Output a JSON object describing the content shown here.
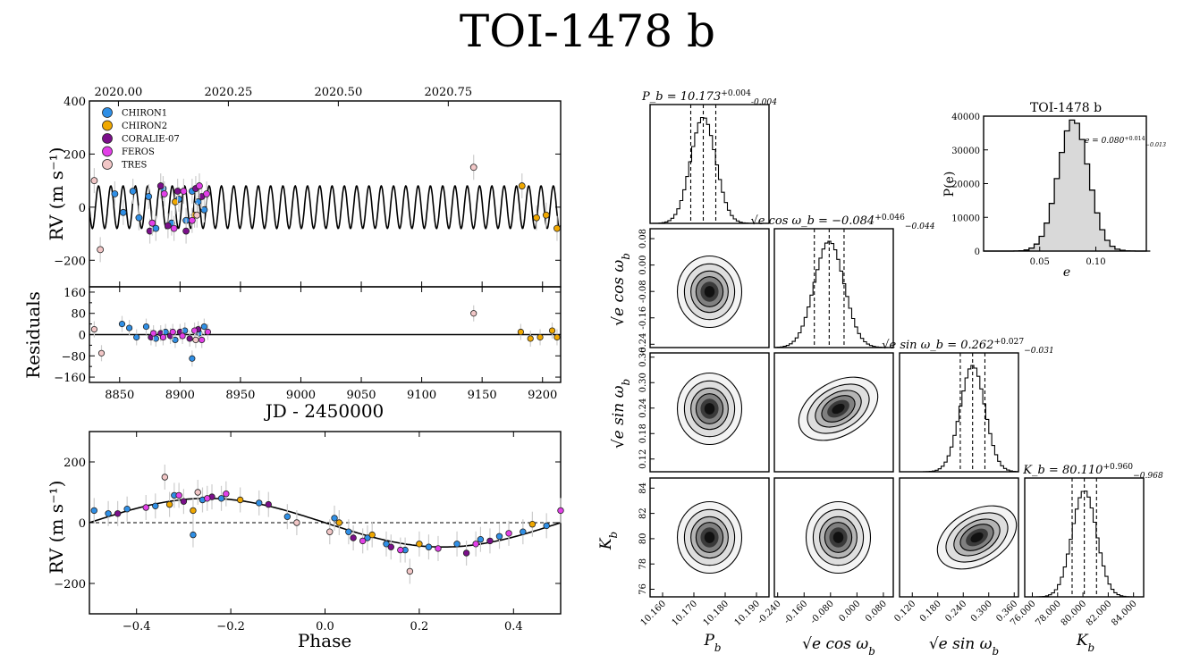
{
  "page": {
    "title": "TOI-1478 b"
  },
  "colors": {
    "CHIRON1": "#2f8fe6",
    "CHIRON2": "#f0a800",
    "CORALIE-07": "#7b0f8a",
    "FEROS": "#e33fe8",
    "TRES": "#f2c7c7"
  },
  "chart_data": [
    {
      "id": "rv_time",
      "type": "scatter",
      "xlabel": "",
      "ylabel": "RV (m s⁻¹)",
      "xlim": [
        8825,
        9215
      ],
      "ylim": [
        -300,
        400
      ],
      "yticks": [
        -200,
        0,
        200,
        400
      ],
      "top_axis_ticks": [
        "2020.00",
        "2020.25",
        "2020.50",
        "2020.75"
      ],
      "legend": [
        "CHIRON1",
        "CHIRON2",
        "CORALIE-07",
        "FEROS",
        "TRES"
      ],
      "legend_position": "top-left",
      "model": {
        "period": 10.173,
        "amplitude": 80.11,
        "t0": 8830
      },
      "series": [
        {
          "name": "CHIRON1",
          "x": [
            8846,
            8853,
            8861,
            8866,
            8874,
            8880,
            8886,
            8893,
            8899,
            8905,
            8910,
            8915,
            8920
          ],
          "y": [
            50,
            -20,
            60,
            -40,
            40,
            -80,
            70,
            -60,
            30,
            -50,
            60,
            20,
            -10
          ]
        },
        {
          "name": "CHIRON2",
          "x": [
            8896,
            8912,
            9183,
            9195,
            9203,
            9212
          ],
          "y": [
            20,
            -30,
            80,
            -40,
            -30,
            -80
          ]
        },
        {
          "name": "CORALIE-07",
          "x": [
            8875,
            8884,
            8890,
            8898,
            8905,
            8913,
            8918
          ],
          "y": [
            -90,
            80,
            -70,
            60,
            -90,
            70,
            40
          ]
        },
        {
          "name": "FEROS",
          "x": [
            8877,
            8887,
            8895,
            8903,
            8910,
            8916,
            8922
          ],
          "y": [
            -60,
            50,
            -80,
            60,
            -50,
            80,
            50
          ]
        },
        {
          "name": "TRES",
          "x": [
            8829,
            8834,
            8914,
            9143
          ],
          "y": [
            100,
            -160,
            -30,
            150
          ]
        }
      ]
    },
    {
      "id": "residuals",
      "type": "scatter",
      "xlabel": "JD - 2450000",
      "ylabel": "Residuals",
      "xlim": [
        8825,
        9215
      ],
      "ylim": [
        -180,
        180
      ],
      "xticks": [
        8850,
        8900,
        8950,
        9000,
        9050,
        9100,
        9150,
        9200
      ],
      "yticks": [
        -160,
        -80,
        0,
        80,
        160
      ],
      "yticks_minor": [
        -120,
        -40,
        40,
        120
      ],
      "series": [
        {
          "name": "CHIRON1",
          "x": [
            8852,
            8858,
            8864,
            8872,
            8880,
            8888,
            8896,
            8904,
            8910,
            8916,
            8920
          ],
          "y": [
            40,
            25,
            -10,
            30,
            -15,
            10,
            -20,
            15,
            -90,
            5,
            30
          ]
        },
        {
          "name": "CHIRON2",
          "x": [
            9182,
            9190,
            9198,
            9208,
            9212
          ],
          "y": [
            10,
            -15,
            -10,
            15,
            -10
          ]
        },
        {
          "name": "CORALIE-07",
          "x": [
            8876,
            8884,
            8892,
            8900,
            8908,
            8915
          ],
          "y": [
            -10,
            5,
            -5,
            10,
            -15,
            20
          ]
        },
        {
          "name": "FEROS",
          "x": [
            8878,
            8886,
            8894,
            8902,
            8912,
            8918,
            8923
          ],
          "y": [
            5,
            -10,
            10,
            -5,
            15,
            -20,
            10
          ]
        },
        {
          "name": "TRES",
          "x": [
            8829,
            8835,
            8913,
            9143
          ],
          "y": [
            20,
            -70,
            -20,
            80
          ]
        }
      ]
    },
    {
      "id": "rv_phase",
      "type": "scatter",
      "xlabel": "Phase",
      "ylabel": "RV (m s⁻¹)",
      "xlim": [
        -0.5,
        0.5
      ],
      "ylim": [
        -300,
        300
      ],
      "xticks": [
        -0.4,
        -0.2,
        0.0,
        0.2,
        0.4
      ],
      "yticks": [
        -200,
        0,
        200
      ],
      "model": {
        "amplitude": 80.11,
        "offset": 0.0
      },
      "series": [
        {
          "name": "CHIRON1",
          "x": [
            -0.49,
            -0.46,
            -0.42,
            -0.36,
            -0.32,
            -0.28,
            -0.26,
            -0.22,
            -0.14,
            -0.08,
            0.02,
            0.05,
            0.09,
            0.13,
            0.17,
            0.22,
            0.28,
            0.33,
            0.37,
            0.42,
            0.47
          ],
          "y": [
            40,
            30,
            45,
            55,
            90,
            -40,
            75,
            80,
            65,
            20,
            15,
            -30,
            -50,
            -70,
            -90,
            -80,
            -70,
            -55,
            -45,
            -30,
            -10
          ]
        },
        {
          "name": "CHIRON2",
          "x": [
            -0.33,
            -0.28,
            -0.18,
            0.03,
            0.1,
            0.2,
            0.44
          ],
          "y": [
            60,
            40,
            75,
            0,
            -40,
            -70,
            -5
          ]
        },
        {
          "name": "CORALIE-07",
          "x": [
            -0.44,
            -0.3,
            -0.24,
            -0.12,
            0.06,
            0.14,
            0.3,
            0.35
          ],
          "y": [
            30,
            70,
            85,
            60,
            -50,
            -80,
            -100,
            -60
          ]
        },
        {
          "name": "FEROS",
          "x": [
            -0.38,
            -0.31,
            -0.25,
            -0.21,
            0.08,
            0.16,
            0.24,
            0.32,
            0.39,
            0.5
          ],
          "y": [
            50,
            90,
            80,
            95,
            -60,
            -90,
            -85,
            -70,
            -35,
            40
          ]
        },
        {
          "name": "TRES",
          "x": [
            -0.34,
            -0.27,
            -0.06,
            0.01,
            0.18
          ],
          "y": [
            150,
            100,
            0,
            -30,
            -160
          ]
        }
      ]
    },
    {
      "id": "eccentricity_hist",
      "type": "area",
      "title": "TOI-1478 b",
      "xlabel": "e",
      "ylabel": "P(e)",
      "annotation": "e = 0.080^{+0.014}_{-0.013}",
      "xlim": [
        0.0,
        0.145
      ],
      "ylim": [
        0,
        40000
      ],
      "xticks": [
        0.05,
        0.1
      ],
      "yticks": [
        0,
        10000,
        20000,
        30000,
        40000
      ],
      "mean": 0.08,
      "sigma": 0.0135,
      "peak": 39000
    },
    {
      "id": "corner",
      "type": "heatmap",
      "params": [
        {
          "name": "P_b",
          "label": "P_b",
          "title": "P_b = 10.173^{+0.004}_{-0.004}",
          "ticks": [
            "10.160",
            "10.170",
            "10.180",
            "10.190"
          ],
          "range": [
            10.156,
            10.194
          ],
          "mean": 10.173,
          "sigma": 0.004
        },
        {
          "name": "sqrt_e_cos_w",
          "label": "√e cos ω_b",
          "title": "√e cos ω_b = −0.084^{+0.046}_{−0.044}",
          "ticks": [
            "-0.240",
            "-0.160",
            "-0.080",
            "0.000",
            "0.080"
          ],
          "range": [
            -0.25,
            0.11
          ],
          "mean": -0.084,
          "sigma": 0.045
        },
        {
          "name": "sqrt_e_sin_w",
          "label": "√e sin ω_b",
          "title": "√e sin ω_b = 0.262^{+0.027}_{−0.031}",
          "ticks": [
            "0.120",
            "0.180",
            "0.240",
            "0.300",
            "0.360"
          ],
          "range": [
            0.09,
            0.37
          ],
          "mean": 0.262,
          "sigma": 0.029
        },
        {
          "name": "K_b",
          "label": "K_b",
          "title": "K_b = 80.110^{+0.960}_{−0.968}",
          "ticks": [
            "76.000",
            "78.000",
            "80.000",
            "82.000",
            "84.000"
          ],
          "range": [
            75.4,
            84.8
          ],
          "mean": 80.11,
          "sigma": 0.965
        }
      ],
      "y_tick_labels": {
        "sqrt_e_cos_w": [
          "0.08",
          "0.00",
          "-0.08",
          "-0.16",
          "-0.24"
        ],
        "sqrt_e_sin_w": [
          "0.36",
          "0.30",
          "0.24",
          "0.18",
          "0.12"
        ],
        "K_b": [
          "84",
          "82",
          "80",
          "78",
          "76"
        ]
      }
    }
  ]
}
